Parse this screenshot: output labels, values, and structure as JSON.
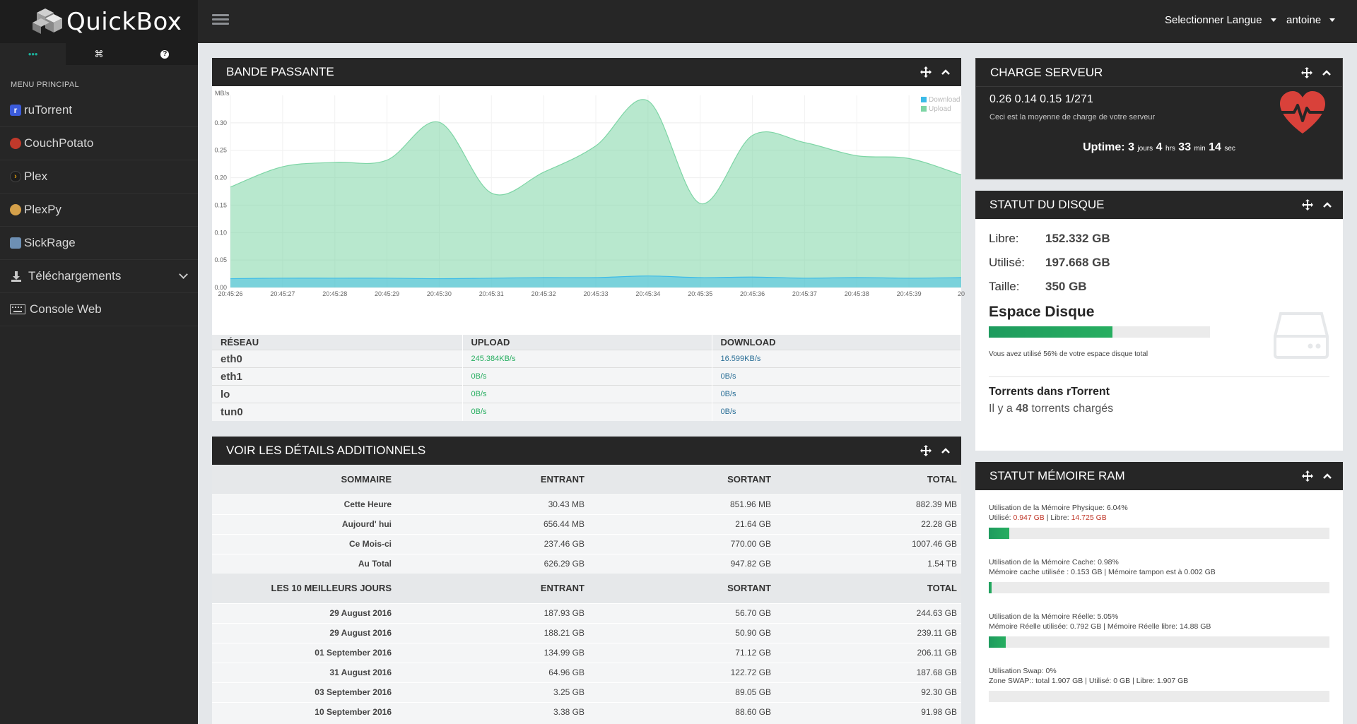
{
  "app": {
    "name": "QuickBox"
  },
  "header": {
    "language_menu": "Selectionner Langue",
    "user_menu": "antoine"
  },
  "sidebar": {
    "tabs": [
      "•••",
      "⌘",
      "?"
    ],
    "menu_title": "MENU PRINCIPAL",
    "items": [
      {
        "label": "ruTorrent",
        "icon": "rutorrent-icon",
        "color": "#3b5bdb"
      },
      {
        "label": "CouchPotato",
        "icon": "couchpotato-icon",
        "color": "#c0392b"
      },
      {
        "label": "Plex",
        "icon": "plex-icon",
        "color": "#e5a00d"
      },
      {
        "label": "PlexPy",
        "icon": "plexpy-icon",
        "color": "#d4a04a"
      },
      {
        "label": "SickRage",
        "icon": "sickrage-icon",
        "color": "#6d8fb3"
      },
      {
        "label": "Téléchargements",
        "icon": "download-icon",
        "color": "#c7c7c7"
      },
      {
        "label": "Console Web",
        "icon": "keyboard-icon",
        "color": "#c7c7c7"
      }
    ]
  },
  "bandwidth": {
    "title": "BANDE PASSANTE",
    "chart_data": {
      "type": "area",
      "ylabel": "MB/s",
      "ylim": [
        0,
        0.35
      ],
      "yticks": [
        "0.00",
        "0.05",
        "0.10",
        "0.15",
        "0.20",
        "0.25",
        "0.30"
      ],
      "categories": [
        "20:45:26",
        "20:45:27",
        "20:45:28",
        "20:45:29",
        "20:45:30",
        "20:45:31",
        "20:45:32",
        "20:45:33",
        "20:45:34",
        "20:45:35",
        "20:45:36",
        "20:45:37",
        "20:45:38",
        "20:45:39",
        "20"
      ],
      "series": [
        {
          "name": "Download",
          "color": "#3cbbe8",
          "values": [
            0.016,
            0.017,
            0.017,
            0.017,
            0.016,
            0.017,
            0.018,
            0.018,
            0.021,
            0.018,
            0.019,
            0.017,
            0.018,
            0.017,
            0.018
          ]
        },
        {
          "name": "Upload",
          "color": "#7dd5a5",
          "values": [
            0.183,
            0.22,
            0.228,
            0.232,
            0.301,
            0.172,
            0.21,
            0.258,
            0.34,
            0.153,
            0.277,
            0.264,
            0.24,
            0.235,
            0.205
          ]
        }
      ]
    },
    "columns": [
      "RÉSEAU",
      "UPLOAD",
      "DOWNLOAD"
    ],
    "rows": [
      {
        "iface": "eth0",
        "upload": "245.384KB/s",
        "download": "16.599KB/s"
      },
      {
        "iface": "eth1",
        "upload": "0B/s",
        "download": "0B/s"
      },
      {
        "iface": "lo",
        "upload": "0B/s",
        "download": "0B/s"
      },
      {
        "iface": "tun0",
        "upload": "0B/s",
        "download": "0B/s"
      }
    ]
  },
  "details": {
    "title": "VOIR LES DÉTAILS ADDITIONNELS",
    "summary_columns": [
      "SOMMAIRE",
      "ENTRANT",
      "SORTANT",
      "TOTAL"
    ],
    "summary_rows": [
      [
        "Cette Heure",
        "30.43 MB",
        "851.96 MB",
        "882.39 MB"
      ],
      [
        "Aujourd' hui",
        "656.44 MB",
        "21.64 GB",
        "22.28 GB"
      ],
      [
        "Ce Mois-ci",
        "237.46 GB",
        "770.00 GB",
        "1007.46 GB"
      ],
      [
        "Au Total",
        "626.29 GB",
        "947.82 GB",
        "1.54 TB"
      ]
    ],
    "top_columns": [
      "LES 10 MEILLEURS JOURS",
      "ENTRANT",
      "SORTANT",
      "TOTAL"
    ],
    "top_rows": [
      [
        "29 August 2016",
        "187.93 GB",
        "56.70 GB",
        "244.63 GB"
      ],
      [
        "29 August 2016",
        "188.21 GB",
        "50.90 GB",
        "239.11 GB"
      ],
      [
        "01 September 2016",
        "134.99 GB",
        "71.12 GB",
        "206.11 GB"
      ],
      [
        "31 August 2016",
        "64.96 GB",
        "122.72 GB",
        "187.68 GB"
      ],
      [
        "03 September 2016",
        "3.25 GB",
        "89.05 GB",
        "92.30 GB"
      ],
      [
        "10 September 2016",
        "3.38 GB",
        "88.60 GB",
        "91.98 GB"
      ]
    ]
  },
  "charge": {
    "title": "CHARGE SERVEUR",
    "load": "0.26 0.14 0.15 1/271",
    "note": "Ceci est la moyenne de charge de votre serveur",
    "uptime_label": "Uptime:",
    "uptime_days": "3",
    "days_unit": "jours",
    "uptime_hours": "4",
    "hours_unit": "hrs",
    "uptime_min": "33",
    "min_unit": "min",
    "uptime_sec": "14",
    "sec_unit": "sec"
  },
  "disk": {
    "title": "STATUT DU DISQUE",
    "free_label": "Libre:",
    "free": "152.332 GB",
    "used_label": "Utilisé:",
    "used": "197.668 GB",
    "size_label": "Taille:",
    "size": "350 GB",
    "space_title": "Espace Disque",
    "used_fraction": 0.56,
    "usage_note": "Vous avez utilisé 56% de votre espace disque total",
    "torrents_title": "Torrents dans rTorrent",
    "torrents_prefix": "Il y a",
    "torrents_count": "48",
    "torrents_suffix": "torrents chargés"
  },
  "ram": {
    "title": "STATUT MÉMOIRE RAM",
    "physical_line1": "Utilisation de la Mémoire Physique: 6.04%",
    "physical_used_label": "Utilisé:",
    "physical_used": "0.947 GB",
    "physical_free_label": "| Libre:",
    "physical_free": "14.725 GB",
    "physical_fraction": 0.0604,
    "cache_line1": "Utilisation de la Mémoire Cache: 0.98%",
    "cache_line2": "Mémoire cache utilisée : 0.153 GB | Mémoire tampon est à 0.002 GB",
    "cache_fraction": 0.0098,
    "real_line1": "Utilisation de la Mémoire Réelle: 5.05%",
    "real_line2": "Mémoire Réelle utilisée: 0.792 GB | Mémoire Réelle libre: 14.88 GB",
    "real_fraction": 0.0505,
    "swap_line1": "Utilisation Swap: 0%",
    "swap_line2": "Zone SWAP:: total 1.907 GB | Utilisé: 0 GB | Libre: 1.907 GB",
    "swap_fraction": 0
  }
}
